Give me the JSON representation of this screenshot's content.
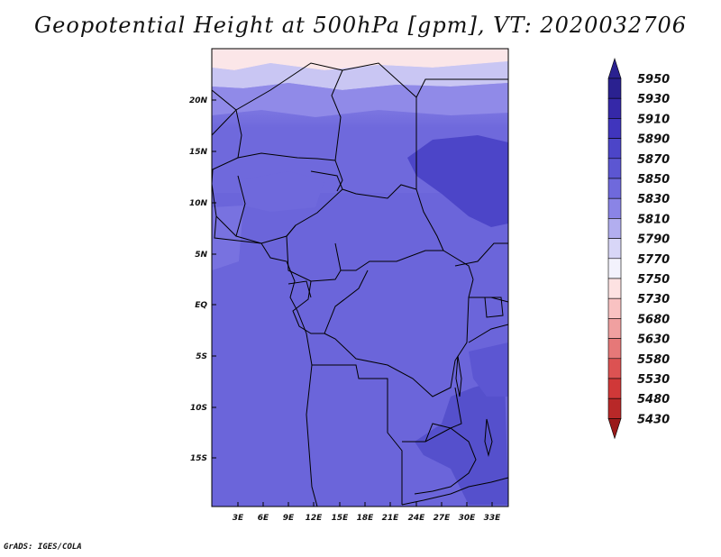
{
  "title": "Geopotential Height at 500hPa [gpm], VT: 2020032706",
  "credit": "GrADS: IGES/COLA",
  "map": {
    "lon_range": [
      0,
      35
    ],
    "lat_range": [
      -20,
      24.5
    ],
    "lat_ticks": [
      "20N",
      "15N",
      "10N",
      "5N",
      "EQ",
      "5S",
      "10S",
      "15S"
    ],
    "lon_ticks": [
      "3E",
      "6E",
      "9E",
      "12E",
      "15E",
      "18E",
      "21E",
      "24E",
      "27E",
      "30E",
      "33E"
    ]
  },
  "colorbar": {
    "levels": [
      "5950",
      "5930",
      "5910",
      "5890",
      "5870",
      "5850",
      "5830",
      "5810",
      "5790",
      "5770",
      "5750",
      "5730",
      "5680",
      "5630",
      "5580",
      "5530",
      "5480",
      "5430"
    ],
    "colors": [
      "#2a2190",
      "#3528a8",
      "#4035bd",
      "#4c45c8",
      "#5c56d2",
      "#6f69dc",
      "#8a84e6",
      "#b2aeef",
      "#d8d6f7",
      "#f3f2fc",
      "#fde2e2",
      "#f9c2c2",
      "#f0a0a0",
      "#e67878",
      "#dc5252",
      "#d03838",
      "#b82828",
      "#9a1a1a"
    ]
  }
}
